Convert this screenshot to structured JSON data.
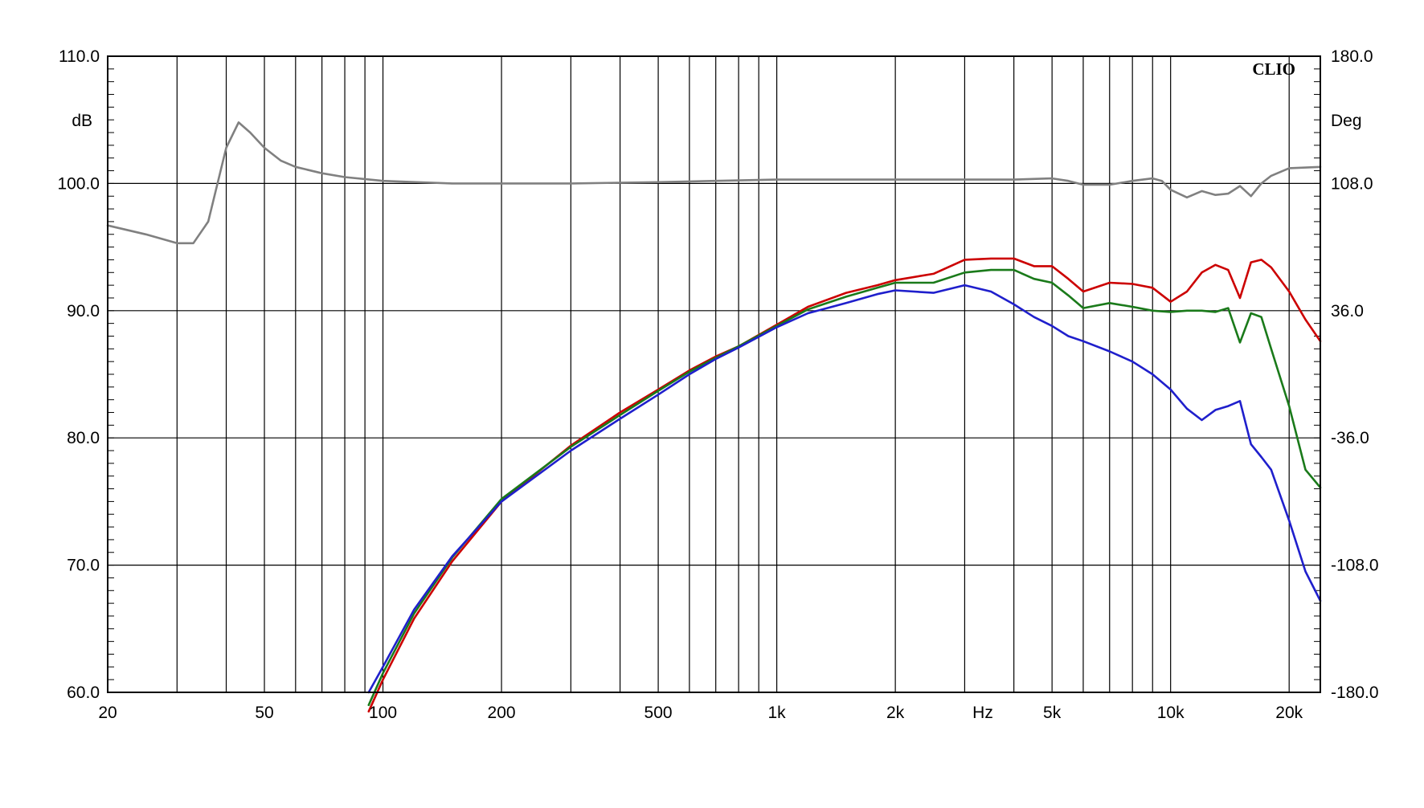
{
  "chart_data": {
    "type": "line",
    "title": "",
    "brand": "CLIO",
    "xlabel": "Hz",
    "ylabel_left": "dB",
    "ylabel_right": "Deg",
    "x_scale": "log",
    "xlim": [
      20,
      24000
    ],
    "ylim_left": [
      60,
      110
    ],
    "ylim_right": [
      -180,
      180
    ],
    "grid": true,
    "legend": "none",
    "x_ticks": [
      {
        "value": 20,
        "label": "20"
      },
      {
        "value": 50,
        "label": "50"
      },
      {
        "value": 100,
        "label": "100"
      },
      {
        "value": 200,
        "label": "200"
      },
      {
        "value": 500,
        "label": "500"
      },
      {
        "value": 1000,
        "label": "1k"
      },
      {
        "value": 2000,
        "label": "2k"
      },
      {
        "value": 5000,
        "label": "5k"
      },
      {
        "value": 10000,
        "label": "10k"
      },
      {
        "value": 20000,
        "label": "20k"
      }
    ],
    "y_ticks_left": [
      {
        "value": 110,
        "label": "110.0"
      },
      {
        "value": 100,
        "label": "100.0"
      },
      {
        "value": 90,
        "label": "90.0"
      },
      {
        "value": 80,
        "label": "80.0"
      },
      {
        "value": 70,
        "label": "70.0"
      },
      {
        "value": 60,
        "label": "60.0"
      }
    ],
    "y_ticks_right": [
      {
        "value": 180,
        "label": "180.0"
      },
      {
        "value": 108,
        "label": "108.0"
      },
      {
        "value": 36,
        "label": "36.0"
      },
      {
        "value": -36,
        "label": "-36.0"
      },
      {
        "value": -108,
        "label": "-108.0"
      },
      {
        "value": -180,
        "label": "-180.0"
      }
    ],
    "series": [
      {
        "color": "#808080",
        "x": [
          20,
          25,
          30,
          33,
          36,
          40,
          43,
          46,
          50,
          55,
          60,
          70,
          80,
          100,
          150,
          200,
          300,
          500,
          700,
          1000,
          2000,
          3000,
          4000,
          5000,
          5500,
          6000,
          7000,
          8000,
          9000,
          9500,
          10000,
          11000,
          12000,
          13000,
          14000,
          15000,
          16000,
          17000,
          18000,
          20000,
          24000
        ],
        "y": [
          96.7,
          96.0,
          95.3,
          95.3,
          97.0,
          102.8,
          104.8,
          104.0,
          102.8,
          101.8,
          101.3,
          100.8,
          100.5,
          100.2,
          100.0,
          100.0,
          100.0,
          100.1,
          100.2,
          100.3,
          100.3,
          100.3,
          100.3,
          100.4,
          100.2,
          99.9,
          99.9,
          100.2,
          100.4,
          100.2,
          99.5,
          98.9,
          99.4,
          99.1,
          99.2,
          99.8,
          99.0,
          100.0,
          100.6,
          101.2,
          101.3
        ]
      },
      {
        "color": "#cc0000",
        "x": [
          92,
          100,
          120,
          150,
          200,
          300,
          400,
          500,
          600,
          700,
          800,
          1000,
          1200,
          1500,
          1800,
          2000,
          2500,
          3000,
          3500,
          4000,
          4500,
          5000,
          5500,
          6000,
          7000,
          8000,
          9000,
          10000,
          11000,
          12000,
          13000,
          14000,
          15000,
          16000,
          17000,
          18000,
          20000,
          22000,
          24000
        ],
        "y": [
          58.5,
          61.0,
          65.8,
          70.3,
          75.0,
          79.4,
          82.0,
          83.8,
          85.3,
          86.4,
          87.2,
          88.9,
          90.3,
          91.4,
          92.0,
          92.4,
          92.9,
          94.0,
          94.1,
          94.1,
          93.5,
          93.5,
          92.5,
          91.5,
          92.2,
          92.1,
          91.8,
          90.7,
          91.5,
          93.0,
          93.6,
          93.2,
          91.0,
          93.8,
          94.0,
          93.4,
          91.5,
          89.3,
          87.6
        ]
      },
      {
        "color": "#1a7a1a",
        "x": [
          92,
          100,
          120,
          150,
          200,
          300,
          400,
          500,
          600,
          700,
          800,
          1000,
          1200,
          1500,
          1800,
          2000,
          2500,
          3000,
          3500,
          4000,
          4500,
          5000,
          5500,
          6000,
          7000,
          8000,
          9000,
          10000,
          11000,
          12000,
          13000,
          14000,
          15000,
          16000,
          17000,
          18000,
          20000,
          22000,
          24000
        ],
        "y": [
          59.0,
          61.5,
          66.2,
          70.6,
          75.2,
          79.3,
          81.8,
          83.7,
          85.2,
          86.3,
          87.2,
          88.8,
          90.1,
          91.1,
          91.8,
          92.2,
          92.2,
          93.0,
          93.2,
          93.2,
          92.5,
          92.2,
          91.2,
          90.2,
          90.6,
          90.3,
          90.0,
          89.9,
          90.0,
          90.0,
          89.9,
          90.2,
          87.5,
          89.8,
          89.5,
          87.0,
          82.5,
          77.5,
          76.1
        ]
      },
      {
        "color": "#1f1fcc",
        "x": [
          92,
          100,
          120,
          150,
          200,
          300,
          400,
          500,
          600,
          700,
          800,
          1000,
          1200,
          1500,
          1800,
          2000,
          2500,
          3000,
          3500,
          4000,
          4500,
          5000,
          5500,
          6000,
          7000,
          8000,
          9000,
          10000,
          11000,
          12000,
          13000,
          14000,
          15000,
          16000,
          17000,
          18000,
          20000,
          22000,
          24000
        ],
        "y": [
          60.0,
          62.0,
          66.5,
          70.7,
          75.0,
          79.0,
          81.5,
          83.4,
          85.0,
          86.2,
          87.1,
          88.7,
          89.8,
          90.6,
          91.3,
          91.6,
          91.4,
          92.0,
          91.5,
          90.5,
          89.5,
          88.8,
          88.0,
          87.6,
          86.8,
          86.0,
          85.0,
          83.8,
          82.3,
          81.4,
          82.2,
          82.5,
          82.9,
          79.5,
          78.5,
          77.5,
          73.5,
          69.5,
          67.2
        ]
      }
    ]
  }
}
